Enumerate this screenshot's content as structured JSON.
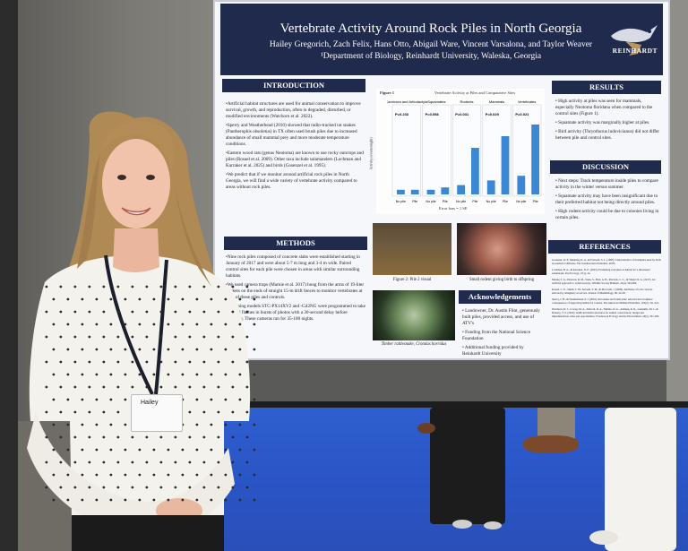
{
  "poster": {
    "title": "Vertebrate Activity Around Rock Piles in North Georgia",
    "authors": "Hailey Gregorich, Zach Felix, Hans Otto, Abigail Ware, Vincent Varsalona, and Taylor Weaver",
    "department": "¹Department of Biology, Reinhardt University, Waleska, Georgia",
    "logo_text": "REINHARDT",
    "sections": {
      "introduction": "INTRODUCTION",
      "methods": "METHODS",
      "results": "RESULTS",
      "discussion": "DISCUSSION",
      "references": "REFERENCES",
      "acknowledgements": "Acknowledgements"
    },
    "intro_paragraphs": [
      "•Artificial habitat structures are used for animal conservation to improve survival, growth, and reproduction, often in degraded, disturbed, or modified environments (Watchorn et al. 2022).",
      "•Sperry and Weatherhead (2010) showed that radio-tracked rat snakes (Pantherophis obsoletus) in TX often used brush piles due to increased abundance of small mammal prey and more moderate temperature conditions.",
      "•Eastern wood rats (genus Neotoma) are known to use rocky outcrops and piles (Rosael et al. 2009). Other taxa include salamanders (Lochman and Karraker et al. 2025) and birds (Gosenzel et al. 1995).",
      "•We predict that if we monitor around artificial rock piles in North Georgia, we will find a wide variety of vertebrate activity compared to areas without rock piles."
    ],
    "methods_paragraphs": [
      "•Nine rock piles composed of concrete slabs were established starting in January of 2017 and were about 5-7 m long and 3-4 m wide. Paired control sites for each pile were chosen in areas with similar surrounding habitats.",
      "•We used camera traps (Marnie et al. 2017) hung from the arms of 19-liter buckets on the ends of straight 15-m drift fences to monitor vertebrates at each of these piles and controls.",
      "•Browning models STC-PX14XV2 and -G42NG were programmed to take infrared flashes in bursts of photos with a 30-second delay before rearming. These cameras ran for 35-180 nights."
    ],
    "figure": {
      "label": "Figure 1",
      "title": "Vertebrate Activity at Piles and Comparative Sites",
      "groups": [
        "Carnivora and Artiodactyla",
        "Squamates",
        "Rodents",
        "Mammals",
        "Vertebrates"
      ],
      "pvalues": [
        "P=0.233",
        "P=0.058",
        "P=0.031",
        "P=0.029",
        "P=0.021"
      ],
      "xticks": [
        "No pile",
        "Pile"
      ],
      "ylabel": "Activity (events/night)",
      "footnote": "Error bars = 1 SE"
    },
    "results_paragraphs": [
      "• High activity at piles was seen for mammals, especially Neotoma floridana when compared to the control sites (Figure 1).",
      "• Squamate activity was marginally higher at piles.",
      "• Bird activity (Thryothorus ludovicianus) did not differ between pile and control sites."
    ],
    "discussion_paragraphs": [
      "• Next steps: Track temperature inside piles to compare activity in the winter versus summer.",
      "• Squamate activity may have been insignificant due to their preferred habitat not being directly around piles.",
      "• High rodent activity could be due to colonies living in certain piles."
    ],
    "references": [
      "Gosenzel, W. E. Manning, K. A., & Fretwell, S. L. (1995). Characteristics of brushpiles used by birds in southern California. The Southwestern Naturalist, 40:85.",
      "Lochman, B. A., & Karraker, N. E. (2025). Evaluating rock piles as habitat for a threatened salamander. Pan Ecology, 17(1), 44.",
      "Marnie, J. A., Peterson, R. M., Stark, S., Hart, A. B., Peterson, C. L., & Singel, R. A. (2017). An artificial approach to rodent surveys. Wildlife Society Bulletin, 41(4), 594-606.",
      "Rosael, C. E., Smith, T. M., Kaveah, T. M., & McCraile, J. (2009). Attributes of rock crevices selected by Allegheny wood rats. Journal of Mammalogy, 90, 22-28.",
      "Sperry, J. H., & Weatherhead, P. J. (2010). Rat snakes and brush piles: selected and avoidance consequences of supporting habitat for rodents. The American Midland Naturalist, 163(2), 311-321.",
      "Watchorn, D. J., Cowan, M. A., Driscoll, D. A., Nimmo, D. G., Ashman, K. R., Garkaklis, M. J., & Doherty, T. S. (2022). Artificial habitat structures for animal conservation: design and implementation, risks and opportunities. Frontiers in Ecology and the Environment, 20(5), 301-309."
    ],
    "captions": {
      "pile": "Figure 2: Pile 2 visual",
      "rodent": "Small rodent giving birth to offspring",
      "snake": "Timber rattlesnake, Crotalus horridus"
    },
    "acknowledgements": [
      "• Landowner, Dr. Austin Flint, generously built piles, provided access, and use of ATV's",
      "• Funding from the National Science Foundation",
      "• Additional funding provided by Reinhardt University"
    ]
  },
  "badge": {
    "name": "Hailey"
  },
  "colors": {
    "poster_navy": "#1f2a4d",
    "bar_blue": "#3b87d4",
    "floor_blue": "#2d5bd0"
  }
}
